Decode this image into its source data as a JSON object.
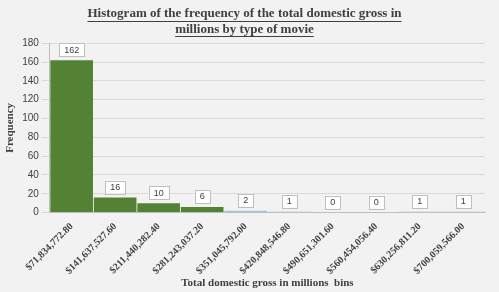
{
  "chart_data": {
    "type": "bar",
    "title": [
      "Histogram of the frequency of the total domestic gross in",
      "millions by type of movie"
    ],
    "x_label": "Total domestic gross in millions  bins",
    "y_label": "Frequency",
    "categories": [
      "$71,834,772.80",
      "$141,637,527.60",
      "$211,440,282.40",
      "$281,243,037.20",
      "$351,045,792.00",
      "$420,848,546.80",
      "$490,651,301.60",
      "$560,454,056.40",
      "$630,256,811.20",
      "$700,059,566.00"
    ],
    "values": [
      162,
      16,
      10,
      6,
      2,
      1,
      0,
      0,
      1,
      1
    ],
    "colors": [
      "#548235",
      "#548235",
      "#548235",
      "#548235",
      "#9dc3e6",
      "#9dc3e6",
      "#9dc3e6",
      "#9dc3e6",
      "#9dc3e6",
      "#9dc3e6"
    ],
    "ylim": [
      0,
      180
    ],
    "yticks": [
      0,
      20,
      40,
      60,
      80,
      100,
      120,
      140,
      160,
      180
    ],
    "grid": true,
    "data_labels": true
  }
}
